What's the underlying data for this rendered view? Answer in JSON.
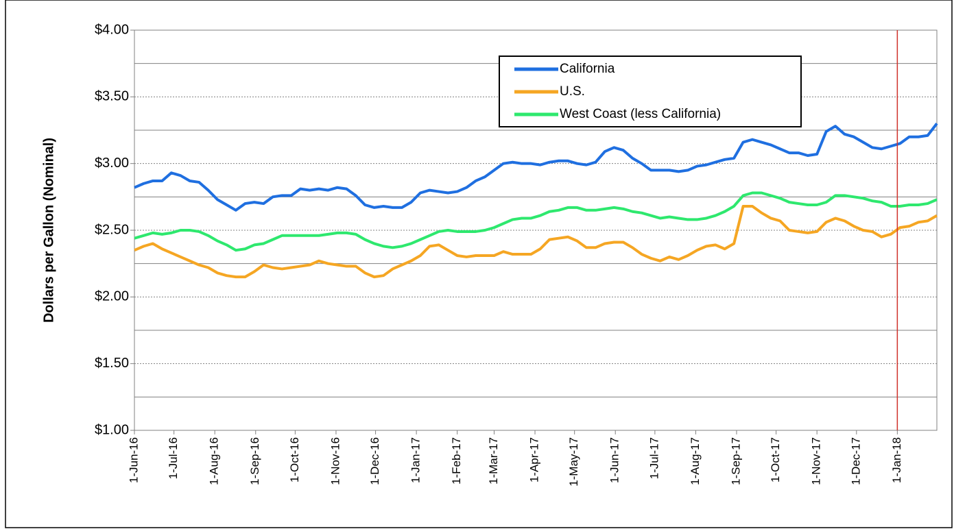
{
  "chart_data": {
    "type": "line",
    "y_label": "Dollars per Gallon (Nominal)",
    "x": [
      "2016-06-01",
      "2016-06-08",
      "2016-06-15",
      "2016-06-22",
      "2016-06-29",
      "2016-07-06",
      "2016-07-13",
      "2016-07-20",
      "2016-07-27",
      "2016-08-03",
      "2016-08-10",
      "2016-08-17",
      "2016-08-24",
      "2016-08-31",
      "2016-09-07",
      "2016-09-14",
      "2016-09-21",
      "2016-09-28",
      "2016-10-05",
      "2016-10-12",
      "2016-10-19",
      "2016-10-26",
      "2016-11-02",
      "2016-11-09",
      "2016-11-16",
      "2016-11-23",
      "2016-11-30",
      "2016-12-07",
      "2016-12-14",
      "2016-12-21",
      "2016-12-28",
      "2017-01-04",
      "2017-01-11",
      "2017-01-18",
      "2017-01-25",
      "2017-02-01",
      "2017-02-08",
      "2017-02-15",
      "2017-02-22",
      "2017-03-01",
      "2017-03-08",
      "2017-03-15",
      "2017-03-22",
      "2017-03-29",
      "2017-04-05",
      "2017-04-12",
      "2017-04-19",
      "2017-04-26",
      "2017-05-03",
      "2017-05-10",
      "2017-05-17",
      "2017-05-24",
      "2017-05-31",
      "2017-06-07",
      "2017-06-14",
      "2017-06-21",
      "2017-06-28",
      "2017-07-05",
      "2017-07-12",
      "2017-07-19",
      "2017-07-26",
      "2017-08-02",
      "2017-08-09",
      "2017-08-16",
      "2017-08-23",
      "2017-08-30",
      "2017-09-06",
      "2017-09-13",
      "2017-09-20",
      "2017-09-27",
      "2017-10-04",
      "2017-10-11",
      "2017-10-18",
      "2017-10-25",
      "2017-11-01",
      "2017-11-08",
      "2017-11-15",
      "2017-11-22",
      "2017-11-29",
      "2017-12-06",
      "2017-12-13",
      "2017-12-20",
      "2017-12-27",
      "2018-01-03",
      "2018-01-10",
      "2018-01-17",
      "2018-01-24",
      "2018-01-31"
    ],
    "series": [
      {
        "name": "California",
        "color": "#1f6fe0",
        "values": [
          2.82,
          2.85,
          2.87,
          2.87,
          2.93,
          2.91,
          2.87,
          2.86,
          2.8,
          2.73,
          2.69,
          2.65,
          2.7,
          2.71,
          2.7,
          2.75,
          2.76,
          2.76,
          2.81,
          2.8,
          2.81,
          2.8,
          2.82,
          2.81,
          2.76,
          2.69,
          2.67,
          2.68,
          2.67,
          2.67,
          2.71,
          2.78,
          2.8,
          2.79,
          2.78,
          2.79,
          2.82,
          2.87,
          2.9,
          2.95,
          3.0,
          3.01,
          3.0,
          3.0,
          2.99,
          3.01,
          3.02,
          3.02,
          3.0,
          2.99,
          3.01,
          3.09,
          3.12,
          3.1,
          3.04,
          3.0,
          2.95,
          2.95,
          2.95,
          2.94,
          2.95,
          2.98,
          2.99,
          3.01,
          3.03,
          3.04,
          3.16,
          3.18,
          3.16,
          3.14,
          3.11,
          3.08,
          3.08,
          3.06,
          3.07,
          3.24,
          3.28,
          3.22,
          3.2,
          3.16,
          3.12,
          3.11,
          3.13,
          3.15,
          3.2,
          3.2,
          3.21,
          3.3
        ]
      },
      {
        "name": "U.S.",
        "color": "#f5a623",
        "values": [
          2.35,
          2.38,
          2.4,
          2.36,
          2.33,
          2.3,
          2.27,
          2.24,
          2.22,
          2.18,
          2.16,
          2.15,
          2.15,
          2.19,
          2.24,
          2.22,
          2.21,
          2.22,
          2.23,
          2.24,
          2.27,
          2.25,
          2.24,
          2.23,
          2.23,
          2.18,
          2.15,
          2.16,
          2.21,
          2.24,
          2.27,
          2.31,
          2.38,
          2.39,
          2.35,
          2.31,
          2.3,
          2.31,
          2.31,
          2.31,
          2.34,
          2.32,
          2.32,
          2.32,
          2.36,
          2.43,
          2.44,
          2.45,
          2.42,
          2.37,
          2.37,
          2.4,
          2.41,
          2.41,
          2.37,
          2.32,
          2.29,
          2.27,
          2.3,
          2.28,
          2.31,
          2.35,
          2.38,
          2.39,
          2.36,
          2.4,
          2.68,
          2.68,
          2.63,
          2.59,
          2.57,
          2.5,
          2.49,
          2.48,
          2.49,
          2.56,
          2.59,
          2.57,
          2.53,
          2.5,
          2.49,
          2.45,
          2.47,
          2.52,
          2.53,
          2.56,
          2.57,
          2.61
        ]
      },
      {
        "name": "West Coast (less California)",
        "color": "#2ee86e",
        "values": [
          2.44,
          2.46,
          2.48,
          2.47,
          2.48,
          2.5,
          2.5,
          2.49,
          2.46,
          2.42,
          2.39,
          2.35,
          2.36,
          2.39,
          2.4,
          2.43,
          2.46,
          2.46,
          2.46,
          2.46,
          2.46,
          2.47,
          2.48,
          2.48,
          2.47,
          2.43,
          2.4,
          2.38,
          2.37,
          2.38,
          2.4,
          2.43,
          2.46,
          2.49,
          2.5,
          2.49,
          2.49,
          2.49,
          2.5,
          2.52,
          2.55,
          2.58,
          2.59,
          2.59,
          2.61,
          2.64,
          2.65,
          2.67,
          2.67,
          2.65,
          2.65,
          2.66,
          2.67,
          2.66,
          2.64,
          2.63,
          2.61,
          2.59,
          2.6,
          2.59,
          2.58,
          2.58,
          2.59,
          2.61,
          2.64,
          2.68,
          2.76,
          2.78,
          2.78,
          2.76,
          2.74,
          2.71,
          2.7,
          2.69,
          2.69,
          2.71,
          2.76,
          2.76,
          2.75,
          2.74,
          2.72,
          2.71,
          2.68,
          2.68,
          2.69,
          2.69,
          2.7,
          2.73
        ]
      }
    ],
    "xlim": [
      "2016-06-01",
      "2018-01-31"
    ],
    "xticks": [
      {
        "value": "2016-06-01",
        "label": "1-Jun-16"
      },
      {
        "value": "2016-07-01",
        "label": "1-Jul-16"
      },
      {
        "value": "2016-08-01",
        "label": "1-Aug-16"
      },
      {
        "value": "2016-09-01",
        "label": "1-Sep-16"
      },
      {
        "value": "2016-10-01",
        "label": "1-Oct-16"
      },
      {
        "value": "2016-11-01",
        "label": "1-Nov-16"
      },
      {
        "value": "2016-12-01",
        "label": "1-Dec-16"
      },
      {
        "value": "2017-01-01",
        "label": "1-Jan-17"
      },
      {
        "value": "2017-02-01",
        "label": "1-Feb-17"
      },
      {
        "value": "2017-03-01",
        "label": "1-Mar-17"
      },
      {
        "value": "2017-04-01",
        "label": "1-Apr-17"
      },
      {
        "value": "2017-05-01",
        "label": "1-May-17"
      },
      {
        "value": "2017-06-01",
        "label": "1-Jun-17"
      },
      {
        "value": "2017-07-01",
        "label": "1-Jul-17"
      },
      {
        "value": "2017-08-01",
        "label": "1-Aug-17"
      },
      {
        "value": "2017-09-01",
        "label": "1-Sep-17"
      },
      {
        "value": "2017-10-01",
        "label": "1-Oct-17"
      },
      {
        "value": "2017-11-01",
        "label": "1-Nov-17"
      },
      {
        "value": "2017-12-01",
        "label": "1-Dec-17"
      },
      {
        "value": "2018-01-01",
        "label": "1-Jan-18"
      }
    ],
    "ylim": [
      1,
      4
    ],
    "yticks": [
      {
        "value": 1,
        "label": "$1.00"
      },
      {
        "value": 1.5,
        "label": "$1.50"
      },
      {
        "value": 2,
        "label": "$2.00"
      },
      {
        "value": 2.5,
        "label": "$2.50"
      },
      {
        "value": 3,
        "label": "$3.00"
      },
      {
        "value": 3.5,
        "label": "$3.50"
      },
      {
        "value": 4,
        "label": "$4.00"
      }
    ],
    "minor_yticks": [
      1.25,
      1.75,
      2.25,
      2.75,
      3.25,
      3.75
    ],
    "grid": true,
    "vline": {
      "x": "2018-01-01",
      "color": "#d0302a"
    },
    "legend": "top-center"
  }
}
